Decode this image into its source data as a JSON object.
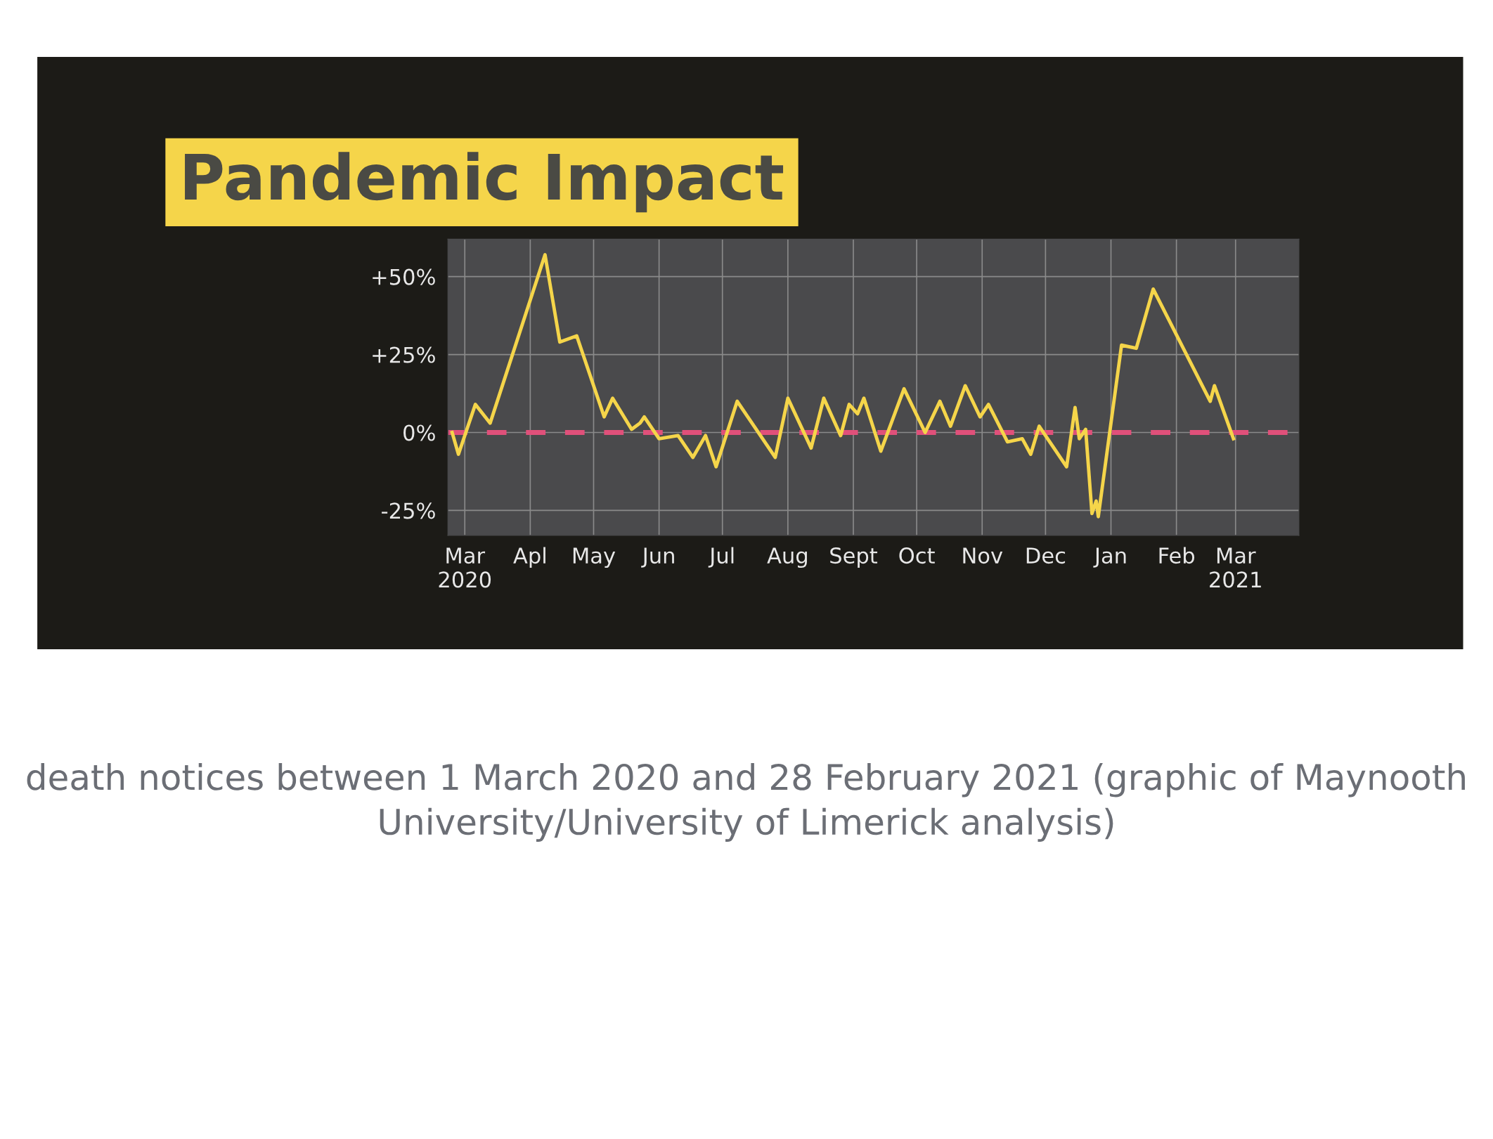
{
  "chart_data": {
    "type": "line",
    "title": "Pandemic Impact",
    "x": [
      "2020-02-24",
      "2020-02-27",
      "2020-03-06",
      "2020-03-13",
      "2020-04-08",
      "2020-04-15",
      "2020-04-23",
      "2020-05-06",
      "2020-05-10",
      "2020-05-19",
      "2020-05-23",
      "2020-05-25",
      "2020-06-01",
      "2020-06-10",
      "2020-06-17",
      "2020-06-23",
      "2020-06-28",
      "2020-07-08",
      "2020-07-26",
      "2020-08-01",
      "2020-08-12",
      "2020-08-18",
      "2020-08-26",
      "2020-08-30",
      "2020-09-03",
      "2020-09-06",
      "2020-09-14",
      "2020-09-25",
      "2020-10-05",
      "2020-10-12",
      "2020-10-17",
      "2020-10-24",
      "2020-10-31",
      "2020-11-04",
      "2020-11-13",
      "2020-11-20",
      "2020-11-24",
      "2020-11-28",
      "2020-12-11",
      "2020-12-15",
      "2020-12-17",
      "2020-12-20",
      "2020-12-23",
      "2020-12-25",
      "2020-12-26",
      "2021-01-06",
      "2021-01-13",
      "2021-01-21",
      "2021-02-17",
      "2021-02-19",
      "2021-02-28"
    ],
    "series": [
      {
        "color": "#f5d54a",
        "values": [
          0,
          -7,
          9,
          3,
          57,
          29,
          31,
          5,
          11,
          1,
          3,
          5,
          -2,
          -1,
          -8,
          -1,
          -11,
          10,
          -8,
          11,
          -5,
          11,
          -1,
          9,
          6,
          11,
          -6,
          14,
          0,
          10,
          2,
          15,
          5,
          9,
          -3,
          -2,
          -7,
          2,
          -11,
          8,
          -2,
          1,
          -26,
          -22,
          -27,
          28,
          27,
          46,
          10,
          15,
          -2
        ]
      }
    ],
    "xlim": [
      "2020-02-22",
      "2021-03-31"
    ],
    "ylim": [
      -33,
      62
    ],
    "xticks": [
      {
        "value": "2020-03-01",
        "label": "Mar\n2020"
      },
      {
        "value": "2020-04-01",
        "label": "Apl"
      },
      {
        "value": "2020-05-01",
        "label": "May"
      },
      {
        "value": "2020-06-01",
        "label": "Jun"
      },
      {
        "value": "2020-07-01",
        "label": "Jul"
      },
      {
        "value": "2020-08-01",
        "label": "Aug"
      },
      {
        "value": "2020-09-01",
        "label": "Sept"
      },
      {
        "value": "2020-10-01",
        "label": "Oct"
      },
      {
        "value": "2020-11-01",
        "label": "Nov"
      },
      {
        "value": "2020-12-01",
        "label": "Dec"
      },
      {
        "value": "2021-01-01",
        "label": "Jan"
      },
      {
        "value": "2021-02-01",
        "label": "Feb"
      },
      {
        "value": "2021-03-01",
        "label": "Mar\n2021"
      }
    ],
    "yticks": [
      {
        "value": -25,
        "label": "-25%"
      },
      {
        "value": 0,
        "label": "0%"
      },
      {
        "value": 25,
        "label": "+25%"
      },
      {
        "value": 50,
        "label": "+50%"
      }
    ],
    "grid": true,
    "marker": "none",
    "line_style": "solid",
    "legend": false,
    "ref_lines": [
      {
        "axis": "y",
        "value": 0,
        "color": "#e0507a",
        "line_style": "dashed"
      }
    ],
    "annotations": [
      "death notices between 1 March 2020 and 28 February 2021 (graphic of Maynooth University/University of Limerick analysis)"
    ]
  }
}
